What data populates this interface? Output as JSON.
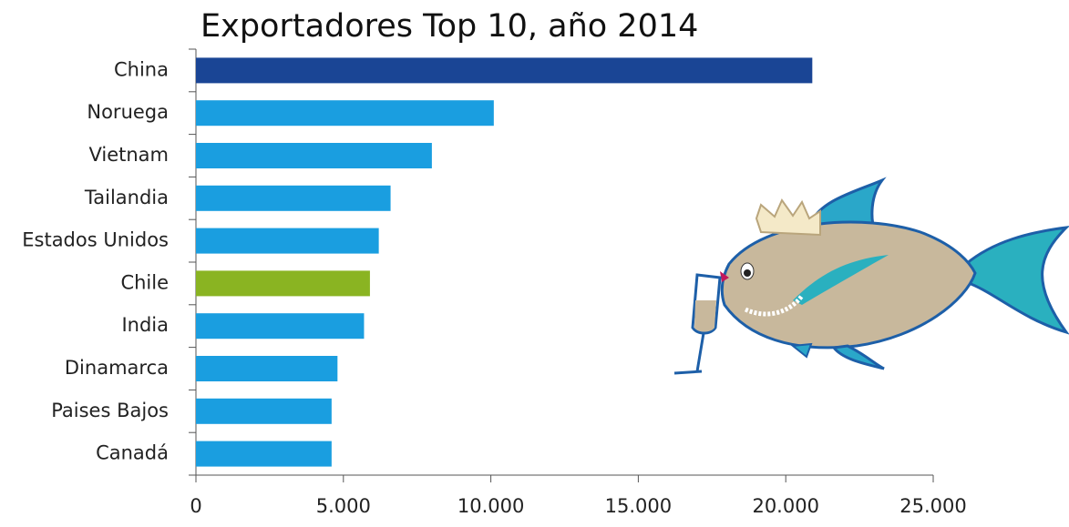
{
  "chart_data": {
    "type": "hbar",
    "title": "Exportadores Top 10, año 2014",
    "categories": [
      "China",
      "Noruega",
      "Vietnam",
      "Tailandia",
      "Estados Unidos",
      "Chile",
      "India",
      "Dinamarca",
      "Paises Bajos",
      "Canadá"
    ],
    "values": [
      20900,
      10100,
      8000,
      6600,
      6200,
      5900,
      5700,
      4800,
      4600,
      4600
    ],
    "colors": [
      "#1a4595",
      "#1a9ee0",
      "#1a9ee0",
      "#1a9ee0",
      "#1a9ee0",
      "#8ab422",
      "#1a9ee0",
      "#1a9ee0",
      "#1a9ee0",
      "#1a9ee0"
    ],
    "xlim": [
      0,
      25000
    ],
    "xticks": [
      0,
      {
        "value": 5000,
        "label": "5.000"
      },
      {
        "value": 10000,
        "label": "10.000"
      },
      {
        "value": 15000,
        "label": "15.000"
      },
      {
        "value": 20000,
        "label": "20.000"
      },
      {
        "value": 25000,
        "label": "25.000"
      }
    ]
  }
}
